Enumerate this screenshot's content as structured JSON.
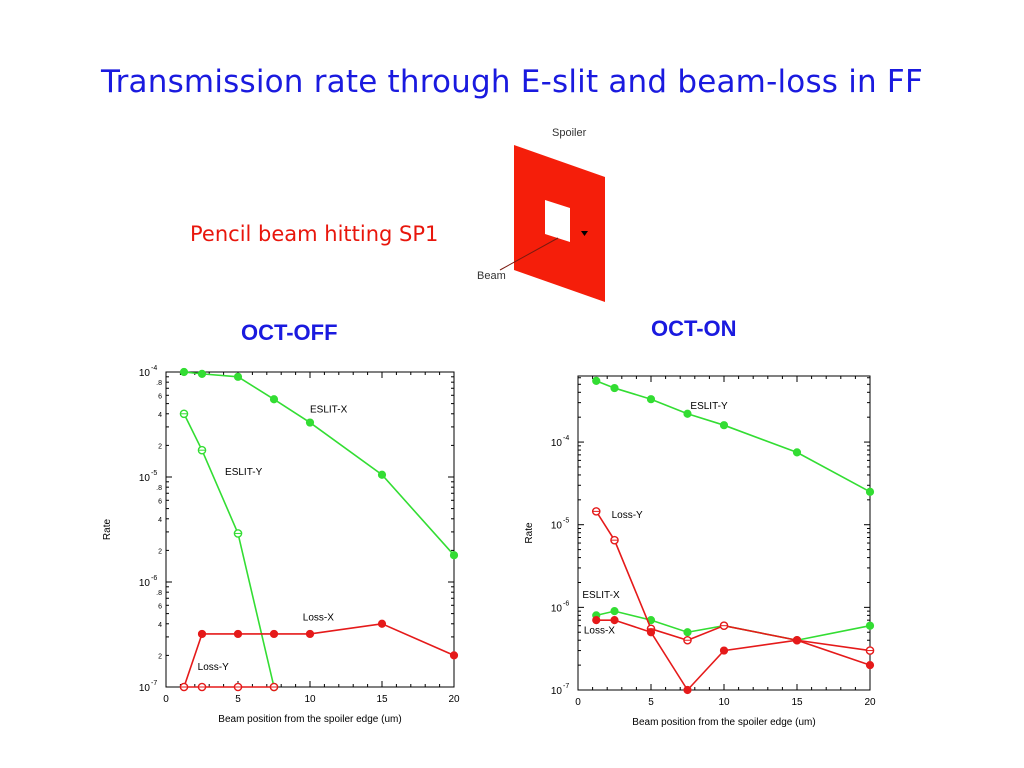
{
  "slide": {
    "title": "Transmission rate through E-slit and beam-loss in FF",
    "subtitle": "Pencil beam hitting SP1",
    "panels": [
      "OCT-OFF",
      "OCT-ON"
    ]
  },
  "diagram": {
    "spoiler_label": "Spoiler",
    "beam_label": "Beam",
    "colors": {
      "spoiler": "#f51e0a",
      "aperture": "#ffffff"
    }
  },
  "colors": {
    "green": "#33dd33",
    "red": "#e51a1a",
    "title": "#1a1adf"
  },
  "chart_data": [
    {
      "type": "line",
      "panel": "OCT-OFF",
      "xlabel": "Beam position from the spoiler edge (um)",
      "ylabel": "Rate",
      "xlim": [
        0,
        20
      ],
      "ylim": [
        1e-07,
        0.0001
      ],
      "yscale": "log",
      "xticks": [
        "0",
        "5",
        "10",
        "15",
        "20"
      ],
      "yticks": [
        {
          "v": 0.0001,
          "t": "10-4",
          "major": true
        },
        {
          "v": 8e-05,
          "t": ".8"
        },
        {
          "v": 6e-05,
          "t": "6"
        },
        {
          "v": 4e-05,
          "t": "4"
        },
        {
          "v": 2e-05,
          "t": "2"
        },
        {
          "v": 1e-05,
          "t": "10-5",
          "major": true
        },
        {
          "v": 8e-06,
          "t": ".8"
        },
        {
          "v": 6e-06,
          "t": "6"
        },
        {
          "v": 4e-06,
          "t": "4"
        },
        {
          "v": 2e-06,
          "t": "2"
        },
        {
          "v": 1e-06,
          "t": "10-6",
          "major": true
        },
        {
          "v": 8e-07,
          "t": ".8"
        },
        {
          "v": 6e-07,
          "t": "6"
        },
        {
          "v": 4e-07,
          "t": "4"
        },
        {
          "v": 2e-07,
          "t": "2"
        },
        {
          "v": 1e-07,
          "t": "10-7",
          "major": true
        }
      ],
      "grid": false,
      "series": [
        {
          "name": "ESLIT-X",
          "color": "#33dd33",
          "marker": "filled",
          "x": [
            1.25,
            2.5,
            5,
            7.5,
            10,
            15,
            20
          ],
          "y": [
            0.0001,
            9.6e-05,
            9e-05,
            5.5e-05,
            3.3e-05,
            1.05e-05,
            1.8e-06
          ],
          "label_at": [
            10,
            4.1e-05
          ]
        },
        {
          "name": "ESLIT-Y",
          "color": "#33dd33",
          "marker": "open",
          "x": [
            1.25,
            2.5,
            5,
            7.5
          ],
          "y": [
            4e-05,
            1.8e-05,
            2.9e-06,
            1e-07
          ],
          "label_at": [
            4.1,
            1.05e-05
          ]
        },
        {
          "name": "Loss-X",
          "color": "#e51a1a",
          "marker": "filled",
          "x": [
            1.25,
            2.5,
            5,
            7.5,
            10,
            15,
            20
          ],
          "y": [
            1e-07,
            3.2e-07,
            3.2e-07,
            3.2e-07,
            3.2e-07,
            4e-07,
            2e-07
          ],
          "label_at": [
            9.5,
            4.3e-07
          ]
        },
        {
          "name": "Loss-Y",
          "color": "#e51a1a",
          "marker": "open",
          "x": [
            1.25,
            2.5,
            5,
            7.5
          ],
          "y": [
            1e-07,
            1e-07,
            1e-07,
            1e-07
          ],
          "label_at": [
            2.2,
            1.45e-07
          ]
        }
      ]
    },
    {
      "type": "line",
      "panel": "OCT-ON",
      "xlabel": "Beam position from the spoiler edge (um)",
      "ylabel": "Rate",
      "xlim": [
        0,
        20
      ],
      "ylim": [
        1e-07,
        0.00063
      ],
      "yscale": "log",
      "xticks": [
        "0",
        "5",
        "10",
        "15",
        "20"
      ],
      "yticks": [
        {
          "v": 0.0001,
          "t": "10-4",
          "major": true
        },
        {
          "v": 1e-05,
          "t": "10-5",
          "major": true
        },
        {
          "v": 1e-06,
          "t": "10-6",
          "major": true
        },
        {
          "v": 1e-07,
          "t": "10-7",
          "major": true
        }
      ],
      "grid": false,
      "series": [
        {
          "name": "ESLIT-Y",
          "color": "#33dd33",
          "marker": "filled",
          "x": [
            1.25,
            2.5,
            5,
            7.5,
            10,
            15,
            20
          ],
          "y": [
            0.00055,
            0.00045,
            0.00033,
            0.00022,
            0.00016,
            7.5e-05,
            2.5e-05
          ],
          "label_at": [
            7.7,
            0.00025
          ]
        },
        {
          "name": "ESLIT-X",
          "color": "#33dd33",
          "marker": "filled",
          "x": [
            1.25,
            2.5,
            5,
            7.5,
            10,
            15,
            20
          ],
          "y": [
            8e-07,
            9e-07,
            7e-07,
            5e-07,
            6e-07,
            4e-07,
            6e-07
          ],
          "label_at": [
            0.3,
            1.3e-06
          ]
        },
        {
          "name": "Loss-Y",
          "color": "#e51a1a",
          "marker": "open",
          "x": [
            1.25,
            2.5,
            5,
            7.5,
            10,
            15,
            20
          ],
          "y": [
            1.45e-05,
            6.5e-06,
            5.5e-07,
            4e-07,
            6e-07,
            4e-07,
            3e-07
          ],
          "label_at": [
            2.3,
            1.2e-05
          ]
        },
        {
          "name": "Loss-X",
          "color": "#e51a1a",
          "marker": "filled",
          "x": [
            1.25,
            2.5,
            5,
            7.5,
            10,
            15,
            20
          ],
          "y": [
            7e-07,
            7e-07,
            5e-07,
            1e-07,
            3e-07,
            4e-07,
            2e-07
          ],
          "label_at": [
            0.4,
            4.8e-07
          ]
        }
      ]
    }
  ]
}
